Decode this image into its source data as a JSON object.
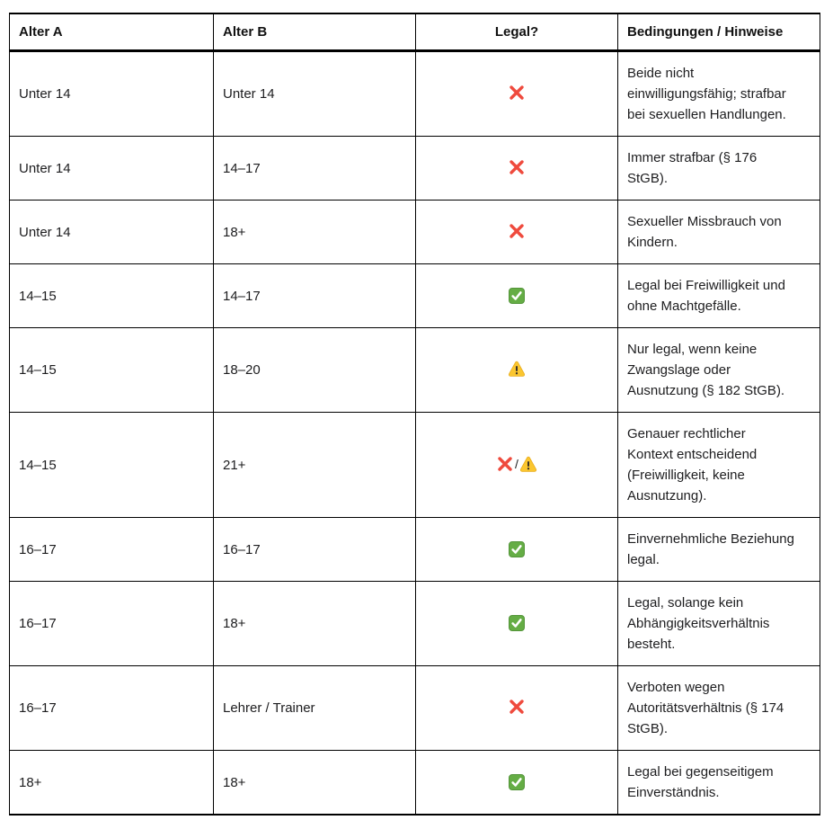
{
  "icon_colors": {
    "cross": "#EF4A3D",
    "check_bg": "#65AD45",
    "check_border": "#54953A",
    "check_mark": "#FFFFFF",
    "warn_bg": "#FBC62F",
    "warn_border": "#E8AC1C",
    "warn_mark": "#3A3328"
  },
  "table": {
    "headers": [
      "Alter A",
      "Alter B",
      "Legal?",
      "Bedingungen / Hinweise"
    ],
    "rows": [
      {
        "alter_a": "Unter 14",
        "alter_b": "Unter 14",
        "legal": [
          "cross"
        ],
        "note_lines": [
          "Beide nicht",
          "einwilligungsfähig; strafbar",
          "bei sexuellen Handlungen."
        ]
      },
      {
        "alter_a": "Unter 14",
        "alter_b": "14–17",
        "legal": [
          "cross"
        ],
        "note_lines": [
          "Immer strafbar (§ 176",
          "StGB)."
        ]
      },
      {
        "alter_a": "Unter 14",
        "alter_b": "18+",
        "legal": [
          "cross"
        ],
        "note_lines": [
          "Sexueller Missbrauch von",
          "Kindern."
        ]
      },
      {
        "alter_a": "14–15",
        "alter_b": "14–17",
        "legal": [
          "check"
        ],
        "note_lines": [
          "Legal bei Freiwilligkeit und",
          "ohne Machtgefälle."
        ]
      },
      {
        "alter_a": "14–15",
        "alter_b": "18–20",
        "legal": [
          "warn"
        ],
        "note_lines": [
          "Nur legal, wenn keine",
          "Zwangslage oder",
          "Ausnutzung (§ 182 StGB)."
        ]
      },
      {
        "alter_a": "14–15",
        "alter_b": "21+",
        "legal": [
          "cross",
          "/",
          "warn"
        ],
        "note_lines": [
          "Genauer rechtlicher",
          "Kontext entscheidend",
          "(Freiwilligkeit, keine",
          "Ausnutzung)."
        ]
      },
      {
        "alter_a": "16–17",
        "alter_b": "16–17",
        "legal": [
          "check"
        ],
        "note_lines": [
          "Einvernehmliche Beziehung",
          "legal."
        ]
      },
      {
        "alter_a": "16–17",
        "alter_b": "18+",
        "legal": [
          "check"
        ],
        "note_lines": [
          "Legal, solange kein",
          "Abhängigkeitsverhältnis",
          "besteht."
        ]
      },
      {
        "alter_a": "16–17",
        "alter_b": "Lehrer / Trainer",
        "legal": [
          "cross"
        ],
        "note_lines": [
          "Verboten wegen",
          "Autoritätsverhältnis (§ 174",
          "StGB)."
        ]
      },
      {
        "alter_a": "18+",
        "alter_b": "18+",
        "legal": [
          "check"
        ],
        "note_lines": [
          "Legal bei gegenseitigem",
          "Einverständnis."
        ]
      }
    ]
  }
}
